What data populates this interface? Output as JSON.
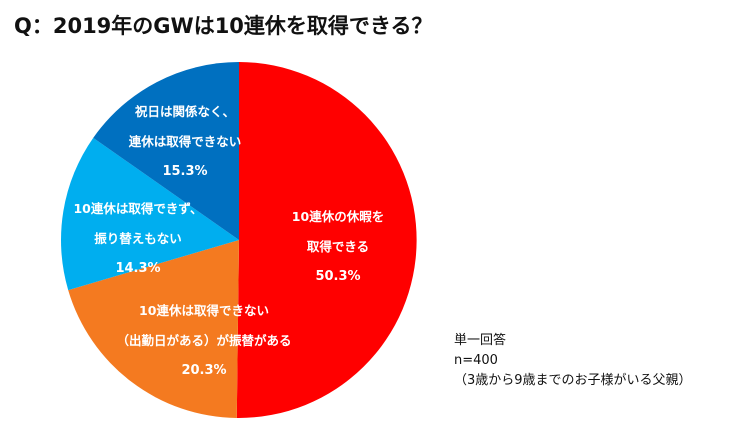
{
  "title": "Q：2019年のGWは10連休を取得できる？",
  "chart_data": {
    "type": "pie",
    "title": "Q：2019年のGWは10連休を取得できる？",
    "slices": [
      {
        "label_lines": [
          "10連休の休暇を",
          "取得できる"
        ],
        "value": 50.3,
        "value_label": "50.3%",
        "color": "#ff0000"
      },
      {
        "label_lines": [
          "10連休は取得できない",
          "（出勤日がある）が振替がある"
        ],
        "value": 20.3,
        "value_label": "20.3%",
        "color": "#f47a20"
      },
      {
        "label_lines": [
          "10連休は取得できず、",
          "振り替えもない"
        ],
        "value": 14.3,
        "value_label": "14.3%",
        "color": "#00aeef"
      },
      {
        "label_lines": [
          "祝日は関係なく、",
          "連休は取得できない"
        ],
        "value": 15.3,
        "value_label": "15.3%",
        "color": "#0070c0"
      }
    ],
    "start_angle_deg": 0,
    "direction": "clockwise"
  },
  "note": {
    "line1": "単一回答",
    "line2": "n=400",
    "line3": "（3歳から9歳までのお子様がいる父親）"
  }
}
